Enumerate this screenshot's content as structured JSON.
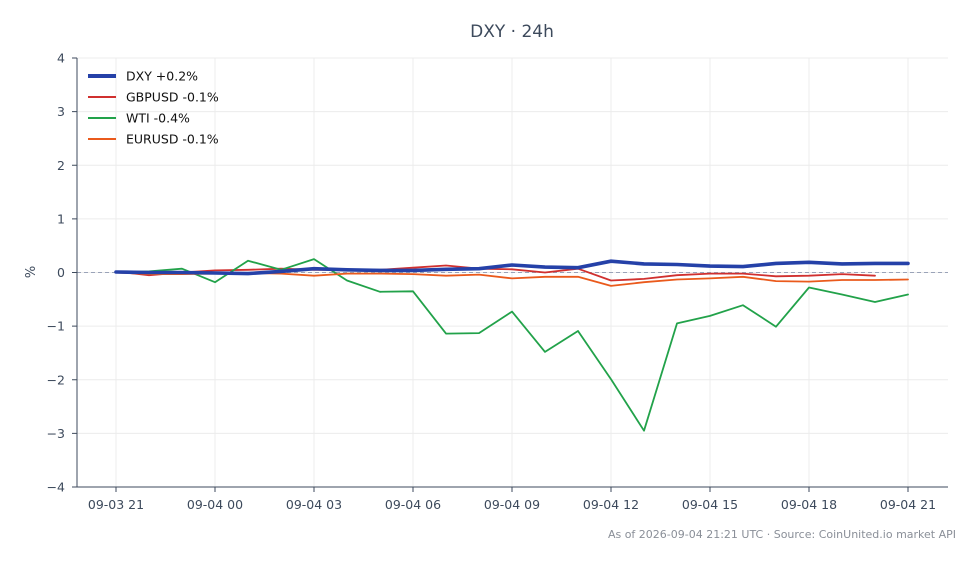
{
  "chart_data": {
    "type": "line",
    "title": "DXY · 24h",
    "xlabel": "",
    "ylabel": "%",
    "ylim": [
      -4,
      4
    ],
    "yticks": [
      4,
      3,
      2,
      1,
      0,
      -1,
      -2,
      -3,
      -4
    ],
    "ytick_labels": [
      "4",
      "3",
      "2",
      "1",
      "0",
      "−1",
      "−2",
      "−3",
      "−4"
    ],
    "xticks": [
      0,
      3,
      6,
      9,
      12,
      15,
      18,
      21,
      24
    ],
    "xtick_labels": [
      "09-03 21",
      "09-04 00",
      "09-04 03",
      "09-04 06",
      "09-04 09",
      "09-04 12",
      "09-04 15",
      "09-04 18",
      "09-04 21"
    ],
    "grid": true,
    "zero_line": true,
    "legend_position": "top-left",
    "series": [
      {
        "name": "DXY +0.2%",
        "color": "#2541a8",
        "emphasis": true,
        "x": [
          0,
          1,
          2,
          3,
          4,
          5,
          6,
          7,
          8,
          9,
          10,
          11,
          12,
          13,
          14,
          15,
          16,
          17,
          18,
          19,
          20,
          21,
          22,
          23,
          24
        ],
        "values": [
          0.01,
          0.0,
          0.0,
          -0.01,
          -0.02,
          0.02,
          0.07,
          0.05,
          0.04,
          0.04,
          0.06,
          0.07,
          0.14,
          0.1,
          0.09,
          0.21,
          0.16,
          0.15,
          0.12,
          0.11,
          0.17,
          0.19,
          0.16,
          0.17,
          0.17
        ]
      },
      {
        "name": "GBPUSD -0.1%",
        "color": "#d0302f",
        "emphasis": false,
        "x": [
          0,
          1,
          2,
          3,
          4,
          5,
          6,
          7,
          8,
          9,
          10,
          11,
          12,
          13,
          14,
          15,
          16,
          17,
          18,
          19,
          20,
          21,
          22,
          23
        ],
        "values": [
          0.02,
          -0.05,
          0.0,
          0.04,
          0.05,
          0.07,
          0.05,
          0.05,
          0.05,
          0.09,
          0.13,
          0.07,
          0.06,
          0.0,
          0.07,
          -0.15,
          -0.12,
          -0.05,
          -0.02,
          -0.02,
          -0.07,
          -0.06,
          -0.03,
          -0.06
        ]
      },
      {
        "name": "WTI -0.4%",
        "color": "#22a24a",
        "emphasis": false,
        "x": [
          0,
          1,
          2,
          3,
          4,
          5,
          6,
          7,
          8,
          9,
          10,
          11,
          12,
          13,
          14,
          15,
          16,
          17,
          18,
          19,
          20,
          21,
          22,
          23,
          24
        ],
        "values": [
          0.0,
          0.02,
          0.07,
          -0.18,
          0.22,
          0.05,
          0.25,
          -0.15,
          -0.36,
          -0.35,
          -1.14,
          -1.13,
          -0.73,
          -1.48,
          -1.09,
          -1.99,
          -2.95,
          -0.95,
          -0.81,
          -0.61,
          -1.01,
          -0.28,
          -0.41,
          -0.55,
          -0.41
        ]
      },
      {
        "name": "EURUSD -0.1%",
        "color": "#ea5a1c",
        "emphasis": false,
        "x": [
          0,
          1,
          2,
          3,
          4,
          5,
          6,
          7,
          8,
          9,
          10,
          11,
          12,
          13,
          14,
          15,
          16,
          17,
          18,
          19,
          20,
          21,
          22,
          23,
          24
        ],
        "values": [
          0.0,
          -0.03,
          -0.03,
          -0.02,
          -0.01,
          -0.02,
          -0.06,
          -0.02,
          -0.02,
          -0.03,
          -0.06,
          -0.04,
          -0.11,
          -0.08,
          -0.08,
          -0.25,
          -0.18,
          -0.13,
          -0.11,
          -0.08,
          -0.16,
          -0.17,
          -0.14,
          -0.14,
          -0.13
        ]
      }
    ]
  },
  "footnote": "As of 2026-09-04 21:21 UTC · Source: CoinUnited.io market API"
}
